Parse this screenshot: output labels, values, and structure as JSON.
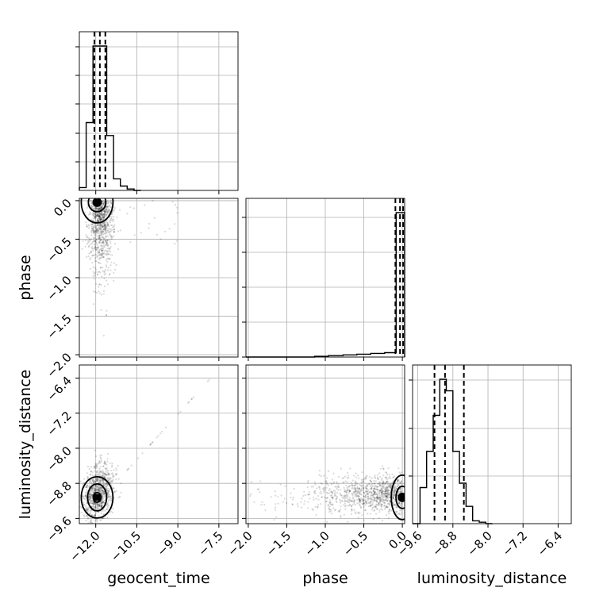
{
  "chart_data": {
    "type": "corner",
    "parameters": [
      "geocent_time",
      "phase",
      "luminosity_distance"
    ],
    "ticks": {
      "geocent_time": [
        "−12.0",
        "−10.5",
        "−9.0",
        "−7.5"
      ],
      "phase": [
        "−2.0",
        "−1.5",
        "−1.0",
        "−0.5",
        "0.0"
      ],
      "luminosity_distance": [
        "−9.6",
        "−8.8",
        "−8.0",
        "−7.2",
        "−6.4"
      ]
    },
    "ranges": {
      "geocent_time": [
        -12.6,
        -6.8
      ],
      "phase": [
        -2.03,
        0.03
      ],
      "luminosity_distance": [
        -9.72,
        -6.1
      ]
    },
    "diagonal_histograms": [
      {
        "parameter": "geocent_time",
        "bin_edges": [
          -12.6,
          -12.35,
          -12.1,
          -11.85,
          -11.6,
          -11.35,
          -11.1,
          -10.85,
          -10.6,
          -10.35
        ],
        "counts": [
          0.02,
          0.47,
          1.0,
          1.0,
          0.38,
          0.08,
          0.03,
          0.01,
          0.0
        ],
        "quantiles": [
          -12.05,
          -11.85,
          -11.65
        ]
      },
      {
        "parameter": "phase",
        "bin_edges": [
          -2.03,
          -1.87,
          -1.69,
          -1.5,
          -1.32,
          -1.14,
          -0.96,
          -0.77,
          -0.59,
          -0.41,
          -0.23,
          -0.08,
          0.03
        ],
        "counts": [
          0.0,
          0.0,
          0.0,
          0.0,
          0.0,
          0.005,
          0.01,
          0.015,
          0.02,
          0.025,
          0.03,
          1.0
        ],
        "quantiles": [
          -0.09,
          -0.03,
          0.01
        ]
      },
      {
        "parameter": "luminosity_distance",
        "bin_edges": [
          -9.72,
          -9.55,
          -9.4,
          -9.25,
          -9.1,
          -8.95,
          -8.8,
          -8.65,
          -8.5,
          -8.35,
          -8.2,
          -8.05,
          -7.9
        ],
        "counts": [
          0.0,
          0.25,
          0.5,
          0.75,
          1.0,
          0.92,
          0.5,
          0.28,
          0.12,
          0.02,
          0.01,
          0.0
        ],
        "quantiles": [
          -9.22,
          -8.98,
          -8.55
        ]
      }
    ],
    "pair_plots": [
      {
        "x": "geocent_time",
        "y": "phase",
        "peak": [
          -11.95,
          -0.02
        ]
      },
      {
        "x": "geocent_time",
        "y": "luminosity_distance",
        "peak": [
          -11.95,
          -9.12
        ]
      },
      {
        "x": "phase",
        "y": "luminosity_distance",
        "peak": [
          0.0,
          -9.12
        ]
      }
    ],
    "grid": true,
    "colors": {
      "points": "#000000",
      "contour_fill_dark": "#505050",
      "contour_fill_mid": "#9a9a9a",
      "contour_fill_light": "#e8e8e8"
    }
  }
}
